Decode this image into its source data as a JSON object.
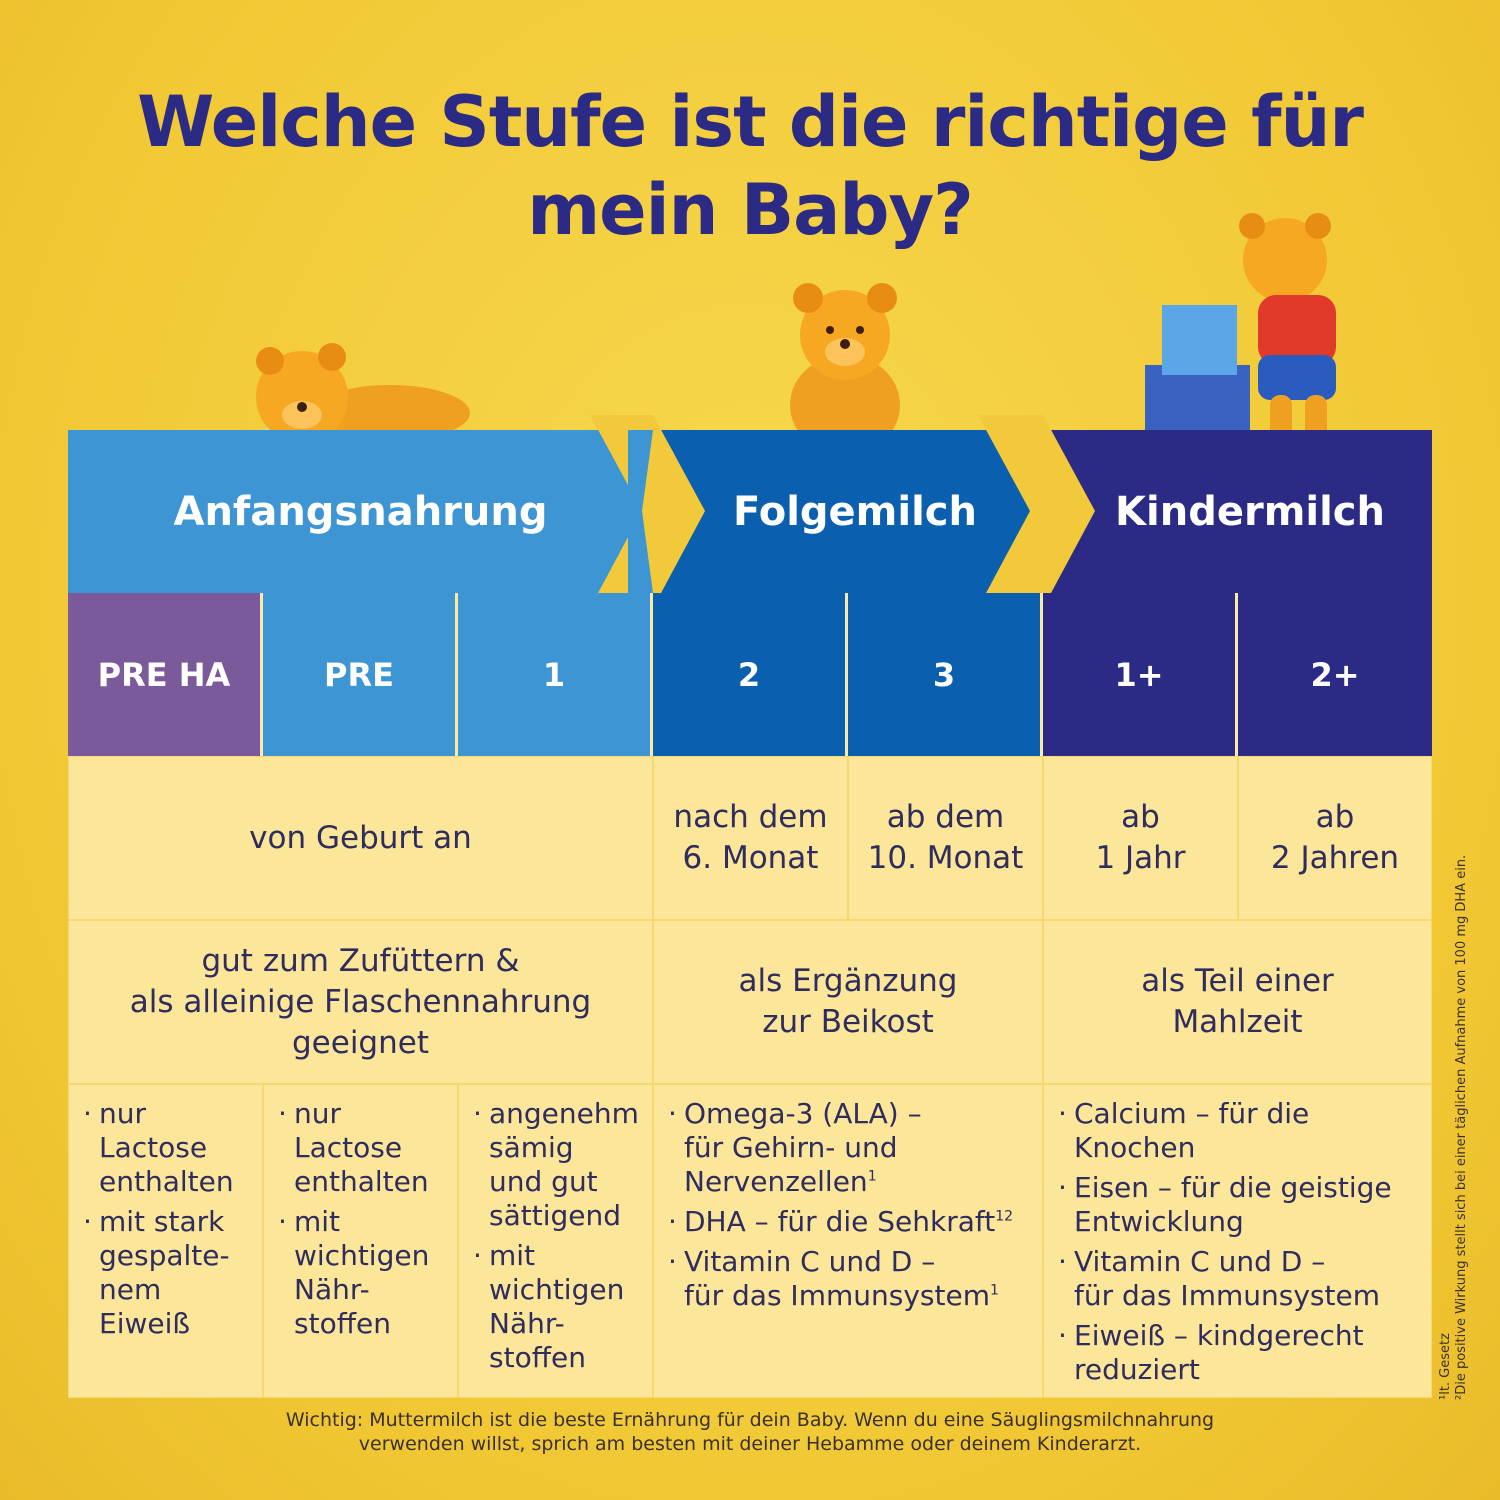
{
  "title_line1": "Welche Stufe ist die richtige für",
  "title_line2": "mein Baby?",
  "headers": [
    "Anfangsnahrung",
    "Folgemilch",
    "Kindermilch"
  ],
  "stages": [
    "PRE HA",
    "PRE",
    "1",
    "2",
    "3",
    "1+",
    "2+"
  ],
  "age": [
    "von Geburt an",
    "nach dem\n6. Monat",
    "ab dem\n10. Monat",
    "ab\n1 Jahr",
    "ab\n2 Jahren"
  ],
  "usage": [
    "gut zum Zufüttern &\nals alleinige Flaschennahrung\ngeeignet",
    "als Ergänzung\nzur Beikost",
    "als Teil einer\nMahlzeit"
  ],
  "features": {
    "pre_ha": [
      "nur\nLactose\nenthalten",
      "mit stark\ngespalte-\nnem\nEiweiß"
    ],
    "pre": [
      "nur\nLactose\nenthalten",
      "mit\nwichtigen\nNähr-\nstoffen"
    ],
    "one": [
      "angenehm\nsämig\nund gut\nsättigend",
      "mit\nwichtigen\nNähr-\nstoffen"
    ],
    "folge": [
      "Omega-3 (ALA) –\nfür Gehirn- und\nNervenzellen",
      "DHA – für die Sehkraft",
      "Vitamin C und D –\nfür das Immunsystem"
    ],
    "folge_sup": [
      "1",
      "12",
      "1"
    ],
    "kinder": [
      "Calcium – für die\nKnochen",
      "Eisen – für die geistige\nEntwicklung",
      "Vitamin C und D –\nfür das Immunsystem",
      "Eiweiß – kindgerecht\nreduziert"
    ]
  },
  "footer_line1": "Wichtig: Muttermilch ist die beste Ernährung für dein Baby. Wenn du eine Säuglingsmilchnahrung",
  "footer_line2": "verwenden willst, sprich am besten mit deiner Hebamme oder deinem Kinderarzt.",
  "footnote1": "¹lt. Gesetz",
  "footnote2": "²Die positive Wirkung stellt sich bei einer täglichen Aufnahme von 100 mg DHA ein.",
  "colors": {
    "anfang": "#3d95d3",
    "folge": "#0a5fae",
    "kinder": "#2b2a85",
    "pre_ha": "#7b5a9b",
    "background": "#f2c93a",
    "cell": "#fbe69a"
  }
}
